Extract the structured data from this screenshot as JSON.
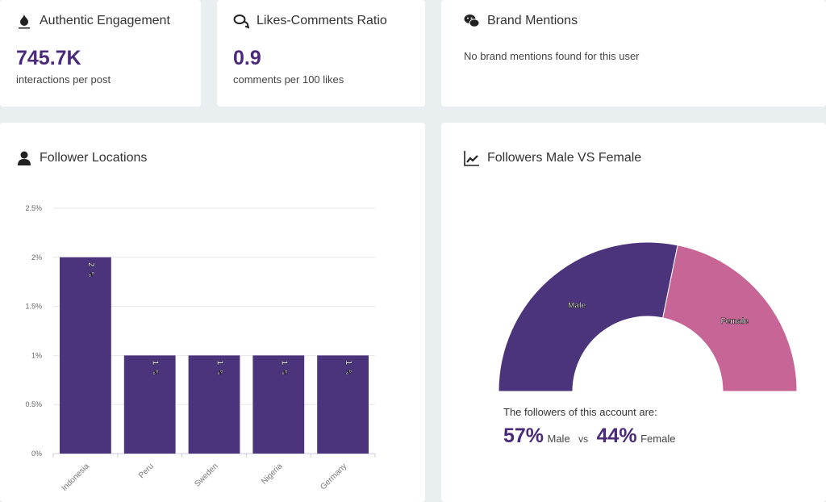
{
  "cards": {
    "engagement": {
      "title": "Authentic Engagement",
      "icon": "fire-icon",
      "value": "745.7K",
      "caption": "interactions per post"
    },
    "ratio": {
      "title": "Likes-Comments Ratio",
      "icon": "comments-icon",
      "value": "0.9",
      "caption": "comments per 100 likes"
    },
    "brand": {
      "title": "Brand Mentions",
      "icon": "wechat-icon",
      "message": "No brand mentions found for this user"
    }
  },
  "locations": {
    "title": "Follower Locations",
    "icon": "user-icon"
  },
  "gender": {
    "title": "Followers Male VS Female",
    "icon": "line-chart-icon",
    "intro": "The followers of this account are:",
    "male_pct": "57%",
    "male_label": "Male",
    "vs": "vs",
    "female_pct": "44%",
    "female_label": "Female"
  },
  "colors": {
    "primary": "#4b347c",
    "female": "#c76596",
    "accent_text": "#4b2a7b",
    "background": "#e9eef1"
  },
  "chart_data": [
    {
      "type": "bar",
      "categories": [
        "Indonesia",
        "Peru",
        "Sweden",
        "Nigeria",
        "Germany"
      ],
      "values": [
        2,
        1,
        1,
        1,
        1
      ],
      "data_labels": [
        "2 %",
        "1 %",
        "1 %",
        "1 %",
        "1 %"
      ],
      "yticks": [
        "0%",
        "0.5%",
        "1%",
        "1.5%",
        "2%",
        "2.5%"
      ],
      "ylim": [
        0,
        2.5
      ],
      "grid": true
    },
    {
      "type": "pie",
      "style": "semi-donut",
      "categories": [
        "Male",
        "Female"
      ],
      "values": [
        57,
        44
      ],
      "colors": [
        "#4b347c",
        "#c76596"
      ]
    }
  ]
}
